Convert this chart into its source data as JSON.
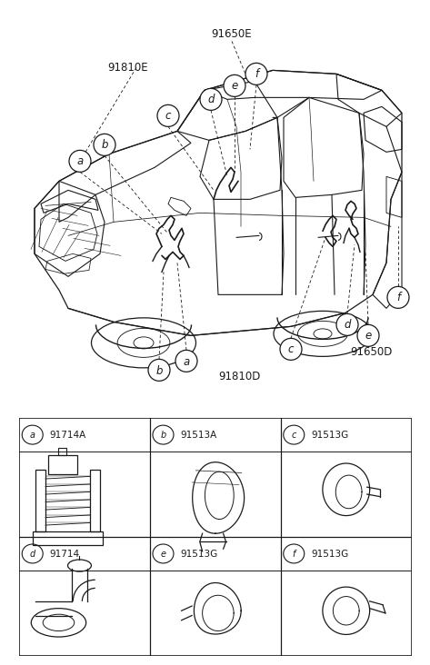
{
  "bg_color": "#ffffff",
  "line_color": "#1a1a1a",
  "parts": [
    {
      "label": "a",
      "part_num": "91714A",
      "row": 1,
      "col": 0
    },
    {
      "label": "b",
      "part_num": "91513A",
      "row": 1,
      "col": 1
    },
    {
      "label": "c",
      "part_num": "91513G",
      "row": 1,
      "col": 2
    },
    {
      "label": "d",
      "part_num": "91714",
      "row": 0,
      "col": 0
    },
    {
      "label": "e",
      "part_num": "91513G",
      "row": 0,
      "col": 1
    },
    {
      "label": "f",
      "part_num": "91513G",
      "row": 0,
      "col": 2
    }
  ]
}
